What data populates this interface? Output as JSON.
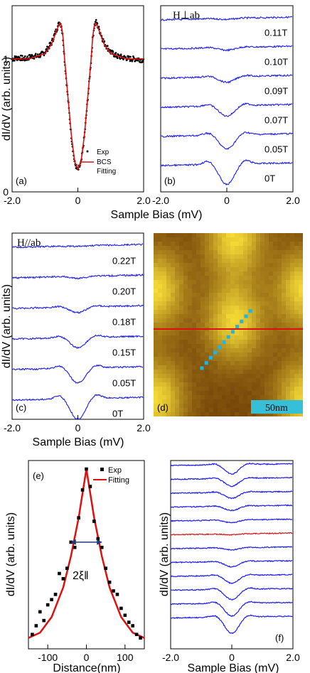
{
  "colors": {
    "data_blue": "#1a1aff",
    "fit_red": "#dd1111",
    "map_dark": "#7a4a0a",
    "map_bright": "#ffe63a",
    "marker_cyan": "#21b4e6",
    "scalebar": "#35c0d8"
  },
  "shared_xlabel_ab": "Sample Bias (mV)",
  "chart_data": [
    {
      "id": "a",
      "panel_label": "(a)",
      "type": "scatter",
      "xlabel": "",
      "ylabel": "dI/dV (arb. units)",
      "xlim": [
        -2.0,
        2.0
      ],
      "ylim": [
        0,
        1.4
      ],
      "xticks": [
        "-2.0",
        "0",
        "2.0"
      ],
      "yticks": [
        "0",
        "1"
      ],
      "legend": {
        "position": "bottom-right",
        "entries": [
          "Exp",
          "BCS",
          "Fitting"
        ]
      },
      "series": [
        {
          "name": "Exp",
          "style": "points",
          "x": [
            -2.0,
            -1.8,
            -1.6,
            -1.4,
            -1.2,
            -1.0,
            -0.8,
            -0.65,
            -0.55,
            -0.5,
            -0.45,
            -0.4,
            -0.3,
            -0.2,
            -0.1,
            0,
            0.1,
            0.2,
            0.3,
            0.4,
            0.45,
            0.5,
            0.55,
            0.65,
            0.8,
            1.0,
            1.2,
            1.4,
            1.6,
            1.8,
            2.0
          ],
          "y": [
            1.0,
            1.01,
            1.0,
            1.02,
            1.02,
            1.05,
            1.12,
            1.22,
            1.28,
            1.25,
            1.15,
            0.98,
            0.7,
            0.42,
            0.22,
            0.16,
            0.22,
            0.42,
            0.7,
            0.98,
            1.15,
            1.25,
            1.28,
            1.22,
            1.12,
            1.05,
            1.02,
            1.01,
            1.0,
            1.0,
            0.99
          ]
        },
        {
          "name": "BCS Fitting",
          "style": "line",
          "x": [
            -2.0,
            -1.5,
            -1.0,
            -0.8,
            -0.65,
            -0.55,
            -0.5,
            -0.45,
            -0.4,
            -0.3,
            -0.2,
            -0.1,
            0,
            0.1,
            0.2,
            0.3,
            0.4,
            0.45,
            0.5,
            0.55,
            0.65,
            0.8,
            1.0,
            1.5,
            2.0
          ],
          "y": [
            1.0,
            1.0,
            1.04,
            1.11,
            1.21,
            1.27,
            1.25,
            1.16,
            0.99,
            0.71,
            0.43,
            0.23,
            0.17,
            0.23,
            0.43,
            0.71,
            0.99,
            1.16,
            1.25,
            1.27,
            1.21,
            1.11,
            1.04,
            1.0,
            1.0
          ]
        }
      ]
    },
    {
      "id": "b",
      "panel_label": "(b)",
      "type": "line",
      "field_label": "H⊥ab",
      "xlim": [
        -2.0,
        2.0
      ],
      "xticks": [
        "-2.0",
        "0",
        "2.0"
      ],
      "series": [
        {
          "name": "0.11T",
          "offset": 5,
          "depth": 0.05
        },
        {
          "name": "0.10T",
          "offset": 4,
          "depth": 0.14
        },
        {
          "name": "0.09T",
          "offset": 3,
          "depth": 0.3
        },
        {
          "name": "0.07T",
          "offset": 2,
          "depth": 0.55
        },
        {
          "name": "0.05T",
          "offset": 1,
          "depth": 0.75
        },
        {
          "name": "0T",
          "offset": 0,
          "depth": 1.1
        }
      ]
    },
    {
      "id": "c",
      "panel_label": "(c)",
      "type": "line",
      "field_label": "H//ab",
      "ylabel": "dI/dV (arb. units)",
      "xlabel": "Sample Bias (mV)",
      "xlim": [
        -2.0,
        2.0
      ],
      "xticks": [
        "-2.0",
        "0",
        "2.0"
      ],
      "series": [
        {
          "name": "0.22T",
          "offset": 5,
          "depth": 0.03
        },
        {
          "name": "0.20T",
          "offset": 4,
          "depth": 0.1
        },
        {
          "name": "0.18T",
          "offset": 3,
          "depth": 0.3
        },
        {
          "name": "0.15T",
          "offset": 2,
          "depth": 0.55
        },
        {
          "name": "0.05T",
          "offset": 1,
          "depth": 0.8
        },
        {
          "name": "0T",
          "offset": 0,
          "depth": 1.1
        }
      ]
    },
    {
      "id": "e",
      "panel_label": "(e)",
      "type": "scatter",
      "xlabel": "Distance(nm)",
      "ylabel": "dI/dV (arb. units)",
      "xlim": [
        -150,
        150
      ],
      "ylim": [
        0,
        1
      ],
      "xticks": [
        "-100",
        "0",
        "100"
      ],
      "annotation": "2ξ‖",
      "legend": {
        "position": "top-right",
        "entries": [
          "Exp",
          "Fitting"
        ]
      },
      "series": [
        {
          "name": "Exp",
          "style": "points",
          "x": [
            -140,
            -130,
            -120,
            -110,
            -100,
            -90,
            -80,
            -70,
            -60,
            -50,
            -40,
            -30,
            -20,
            -10,
            0,
            10,
            20,
            30,
            40,
            50,
            60,
            70,
            80,
            90,
            100,
            110,
            120,
            130,
            140
          ],
          "y": [
            0.05,
            0.1,
            0.18,
            0.13,
            0.22,
            0.25,
            0.28,
            0.4,
            0.37,
            0.43,
            0.58,
            0.55,
            0.72,
            0.88,
            1.0,
            0.9,
            0.7,
            0.6,
            0.55,
            0.43,
            0.35,
            0.3,
            0.28,
            0.2,
            0.16,
            0.12,
            0.1,
            0.05,
            0.03
          ]
        },
        {
          "name": "Fitting",
          "style": "line",
          "x": [
            -150,
            -120,
            -90,
            -60,
            -40,
            -20,
            0,
            20,
            40,
            60,
            90,
            120,
            150
          ],
          "y": [
            0.03,
            0.06,
            0.15,
            0.32,
            0.5,
            0.72,
            1.0,
            0.72,
            0.5,
            0.32,
            0.15,
            0.06,
            0.03
          ]
        }
      ]
    },
    {
      "id": "f",
      "panel_label": "(f)",
      "type": "line",
      "xlabel": "Sample Bias (mV)",
      "ylabel": "dI/dV (arb. units)",
      "xlim": [
        -2.0,
        2.0
      ],
      "xticks": [
        "-2.0",
        "0",
        "2.0"
      ],
      "series_depths": [
        0.55,
        0.45,
        0.35,
        0.25,
        0.15,
        0.05,
        0.12,
        0.3,
        0.45,
        0.6,
        0.75,
        0.95
      ],
      "highlight_index": 5
    }
  ],
  "panel_d": {
    "panel_label": "(d)",
    "scale_bar": "50nm"
  }
}
